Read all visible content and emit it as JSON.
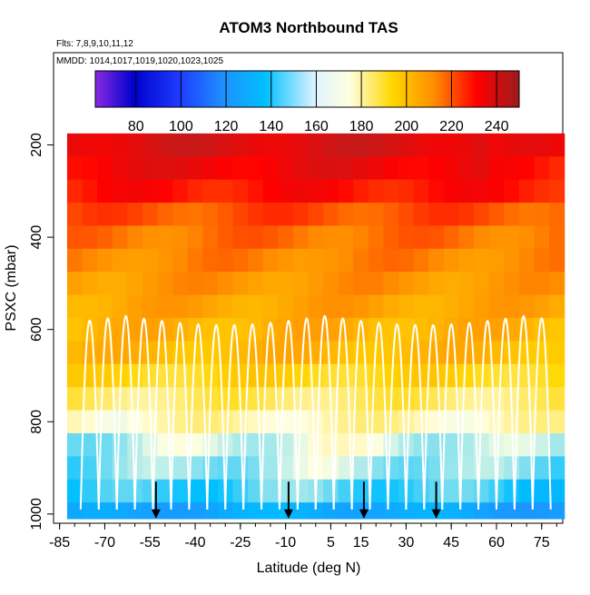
{
  "chart_data": {
    "type": "heatmap",
    "title": "ATOM3 Northbound TAS",
    "subtitle_flights": "Flts: 7,8,9,10,11,12",
    "subtitle_dates": "MMDD: 1014,1017,1019,1020,1023,1025",
    "xlabel": "Latitude (deg N)",
    "ylabel": "PSXC (mbar)",
    "xlim": [
      -87,
      82
    ],
    "ylim": [
      1020,
      0
    ],
    "x_ticks": [
      -85,
      -70,
      -55,
      -40,
      -25,
      -10,
      5,
      15,
      30,
      45,
      60,
      75
    ],
    "y_ticks": [
      200,
      400,
      600,
      800,
      1000
    ],
    "colorbar": {
      "range": [
        62,
        250
      ],
      "ticks": [
        80,
        100,
        120,
        140,
        160,
        180,
        200,
        220,
        240
      ],
      "colors": [
        "#8a2be2",
        "#0000cd",
        "#1e90ff",
        "#00bfff",
        "#ffffe0",
        "#ffd700",
        "#ff8c00",
        "#ff0000",
        "#b22222"
      ]
    },
    "pressure_levels": [
      200,
      250,
      300,
      350,
      400,
      450,
      500,
      550,
      600,
      650,
      700,
      750,
      800,
      850,
      900,
      950,
      1000
    ],
    "latitude_bins": [
      -80,
      -75,
      -70,
      -65,
      -60,
      -55,
      -50,
      -45,
      -40,
      -35,
      -30,
      -25,
      -20,
      -15,
      -10,
      -5,
      0,
      5,
      10,
      15,
      20,
      25,
      30,
      35,
      40,
      45,
      50,
      55,
      60,
      65,
      70,
      75,
      80
    ],
    "tas_profile_by_level": [
      238,
      232,
      225,
      214,
      208,
      204,
      200,
      196,
      192,
      190,
      180,
      170,
      162,
      155,
      150,
      142,
      125
    ],
    "markers_lat": [
      -53,
      -9,
      16,
      40
    ]
  }
}
